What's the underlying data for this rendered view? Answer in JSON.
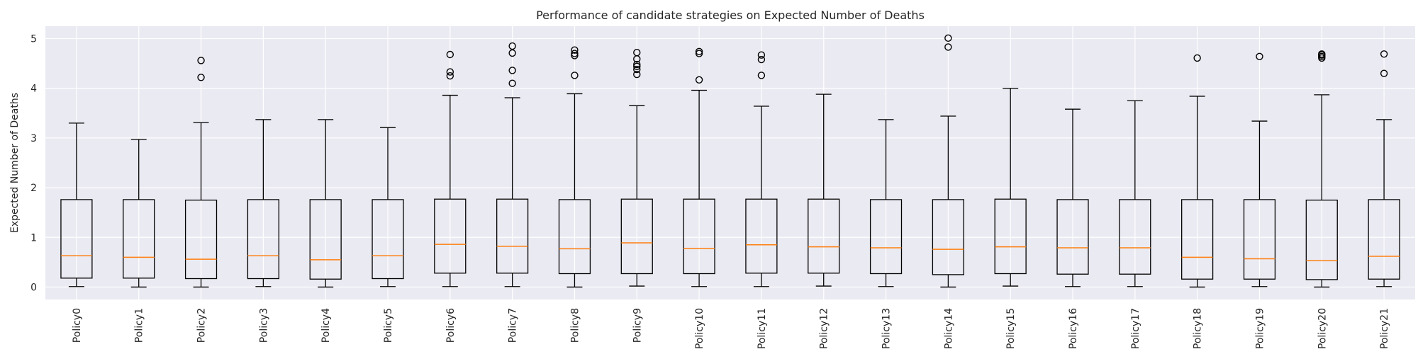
{
  "chart_data": {
    "type": "box",
    "title": "Performance of candidate strategies on Expected Number of Deaths",
    "xlabel": "",
    "ylabel": "Expected Number of Deaths",
    "ylim": [
      -0.25,
      5.25
    ],
    "yticks": [
      0,
      1,
      2,
      3,
      4,
      5
    ],
    "grid": true,
    "series": [
      {
        "label": "Policy0",
        "whislo": 0.01,
        "q1": 0.18,
        "med": 0.63,
        "q3": 1.76,
        "whishi": 3.3,
        "fliers": []
      },
      {
        "label": "Policy1",
        "whislo": 0.0,
        "q1": 0.18,
        "med": 0.6,
        "q3": 1.76,
        "whishi": 2.97,
        "fliers": []
      },
      {
        "label": "Policy2",
        "whislo": 0.0,
        "q1": 0.17,
        "med": 0.56,
        "q3": 1.75,
        "whishi": 3.31,
        "fliers": [
          4.22,
          4.56
        ]
      },
      {
        "label": "Policy3",
        "whislo": 0.01,
        "q1": 0.17,
        "med": 0.63,
        "q3": 1.76,
        "whishi": 3.37,
        "fliers": []
      },
      {
        "label": "Policy4",
        "whislo": 0.0,
        "q1": 0.16,
        "med": 0.55,
        "q3": 1.76,
        "whishi": 3.37,
        "fliers": []
      },
      {
        "label": "Policy5",
        "whislo": 0.01,
        "q1": 0.17,
        "med": 0.63,
        "q3": 1.76,
        "whishi": 3.21,
        "fliers": []
      },
      {
        "label": "Policy6",
        "whislo": 0.01,
        "q1": 0.28,
        "med": 0.86,
        "q3": 1.77,
        "whishi": 3.86,
        "fliers": [
          4.25,
          4.33,
          4.68
        ]
      },
      {
        "label": "Policy7",
        "whislo": 0.01,
        "q1": 0.28,
        "med": 0.82,
        "q3": 1.77,
        "whishi": 3.81,
        "fliers": [
          4.1,
          4.36,
          4.71,
          4.85
        ]
      },
      {
        "label": "Policy8",
        "whislo": 0.0,
        "q1": 0.27,
        "med": 0.77,
        "q3": 1.76,
        "whishi": 3.89,
        "fliers": [
          4.26,
          4.66,
          4.7,
          4.77
        ]
      },
      {
        "label": "Policy9",
        "whislo": 0.02,
        "q1": 0.27,
        "med": 0.89,
        "q3": 1.77,
        "whishi": 3.65,
        "fliers": [
          4.28,
          4.38,
          4.44,
          4.48,
          4.59,
          4.72
        ]
      },
      {
        "label": "Policy10",
        "whislo": 0.01,
        "q1": 0.27,
        "med": 0.78,
        "q3": 1.77,
        "whishi": 3.96,
        "fliers": [
          4.17,
          4.7,
          4.74
        ]
      },
      {
        "label": "Policy11",
        "whislo": 0.01,
        "q1": 0.28,
        "med": 0.85,
        "q3": 1.77,
        "whishi": 3.64,
        "fliers": [
          4.26,
          4.58,
          4.67
        ]
      },
      {
        "label": "Policy12",
        "whislo": 0.02,
        "q1": 0.28,
        "med": 0.81,
        "q3": 1.77,
        "whishi": 3.88,
        "fliers": []
      },
      {
        "label": "Policy13",
        "whislo": 0.01,
        "q1": 0.27,
        "med": 0.79,
        "q3": 1.76,
        "whishi": 3.37,
        "fliers": []
      },
      {
        "label": "Policy14",
        "whislo": 0.0,
        "q1": 0.25,
        "med": 0.76,
        "q3": 1.76,
        "whishi": 3.44,
        "fliers": [
          4.83,
          5.01
        ]
      },
      {
        "label": "Policy15",
        "whislo": 0.02,
        "q1": 0.27,
        "med": 0.81,
        "q3": 1.77,
        "whishi": 4.0,
        "fliers": []
      },
      {
        "label": "Policy16",
        "whislo": 0.01,
        "q1": 0.26,
        "med": 0.79,
        "q3": 1.76,
        "whishi": 3.58,
        "fliers": []
      },
      {
        "label": "Policy17",
        "whislo": 0.01,
        "q1": 0.26,
        "med": 0.79,
        "q3": 1.76,
        "whishi": 3.75,
        "fliers": []
      },
      {
        "label": "Policy18",
        "whislo": 0.0,
        "q1": 0.16,
        "med": 0.6,
        "q3": 1.76,
        "whishi": 3.84,
        "fliers": [
          4.61
        ]
      },
      {
        "label": "Policy19",
        "whislo": 0.01,
        "q1": 0.16,
        "med": 0.57,
        "q3": 1.76,
        "whishi": 3.34,
        "fliers": [
          4.64
        ]
      },
      {
        "label": "Policy20",
        "whislo": 0.0,
        "q1": 0.15,
        "med": 0.53,
        "q3": 1.75,
        "whishi": 3.87,
        "fliers": [
          4.61,
          4.64,
          4.67,
          4.69
        ]
      },
      {
        "label": "Policy21",
        "whislo": 0.01,
        "q1": 0.16,
        "med": 0.62,
        "q3": 1.76,
        "whishi": 3.37,
        "fliers": [
          4.3,
          4.69
        ]
      }
    ]
  }
}
